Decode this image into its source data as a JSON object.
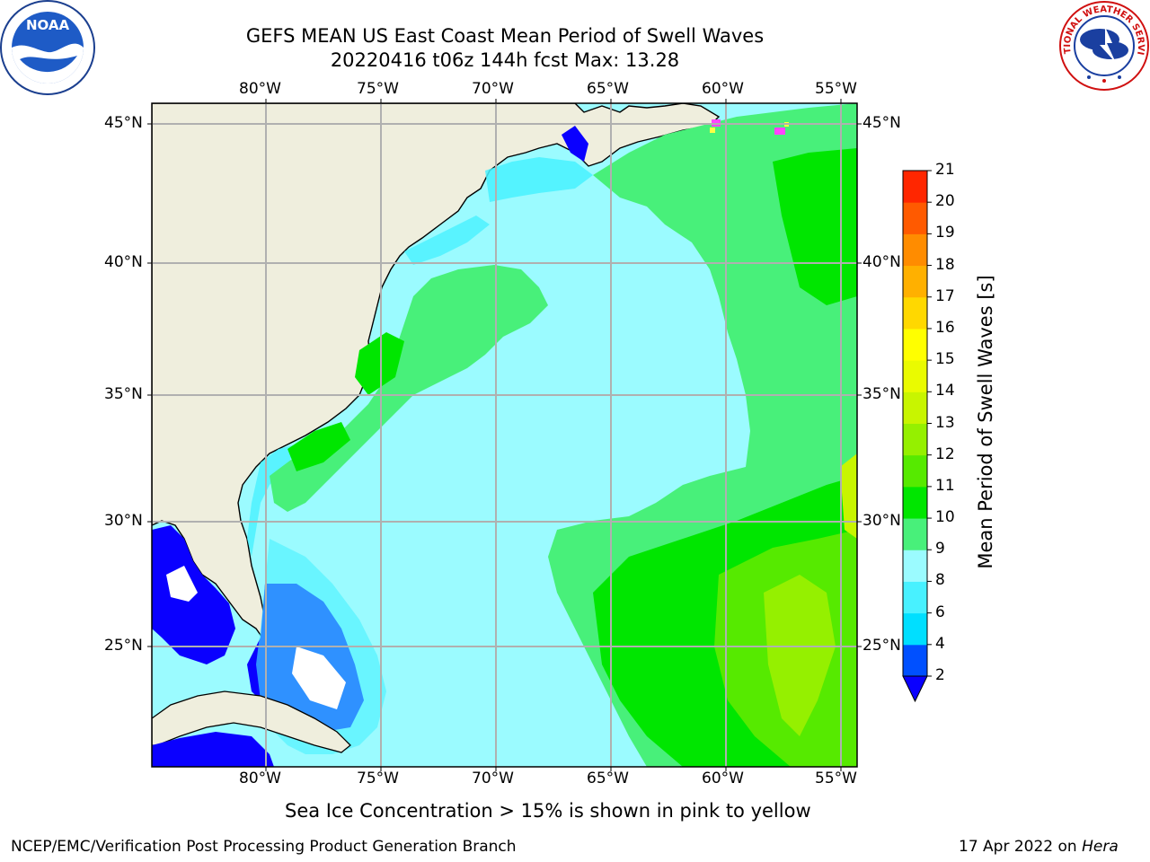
{
  "title": {
    "line1": "GEFS MEAN US East Coast Mean Period of Swell Waves",
    "line2": "20220416 t06z 144h fcst   Max: 13.28"
  },
  "map": {
    "lon_labels": [
      "80°W",
      "75°W",
      "70°W",
      "65°W",
      "60°W",
      "55°W"
    ],
    "lat_labels": [
      "45°N",
      "40°N",
      "35°N",
      "30°N",
      "25°N"
    ],
    "lon_range": [
      -85,
      -54.3
    ],
    "lat_range": [
      20,
      45.8
    ]
  },
  "colorbar": {
    "label": "Mean Period of Swell Waves [s]",
    "ticks": [
      "2",
      "4",
      "6",
      "8",
      "9",
      "10",
      "11",
      "12",
      "13",
      "14",
      "15",
      "16",
      "17",
      "18",
      "19",
      "20",
      "21"
    ],
    "colors": [
      "#0050ff",
      "#00dfff",
      "#48f1ff",
      "#9bfbff",
      "#48f07a",
      "#00e600",
      "#56ea00",
      "#95f000",
      "#c8f500",
      "#eafb00",
      "#ffff00",
      "#ffd800",
      "#ffb000",
      "#ff8c00",
      "#ff5a00",
      "#ff2600"
    ],
    "under_color": "#0a00ff"
  },
  "subtitle": "Sea Ice Concentration > 15% is shown in pink to yellow",
  "footer": {
    "left": "NCEP/EMC/Verification Post Processing Product Generation Branch",
    "date": "17 Apr 2022 on ",
    "machine": "Hera"
  },
  "logos": {
    "noaa_text": "NOAA",
    "nws_text": "NATIONAL WEATHER SERVICE"
  }
}
